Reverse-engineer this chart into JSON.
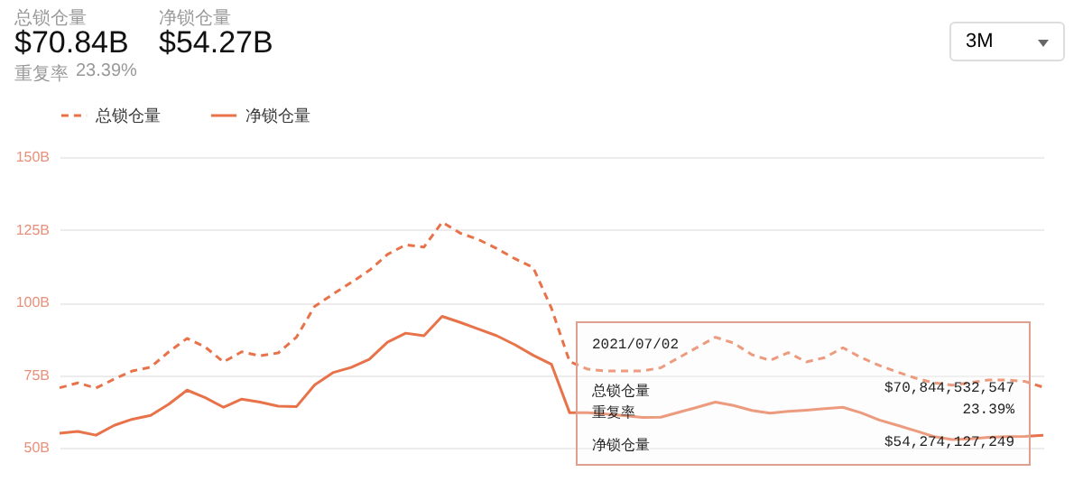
{
  "chart_data": {
    "type": "line",
    "categories": [
      null,
      null,
      null,
      null,
      null,
      null,
      null,
      null,
      null,
      null,
      null,
      null,
      null,
      null,
      null,
      null,
      null,
      null,
      null,
      null,
      null,
      null,
      null,
      null,
      null,
      null,
      null,
      null,
      null,
      null,
      null,
      null,
      null,
      null,
      null,
      null,
      null,
      null,
      null,
      null,
      null,
      null,
      null,
      null,
      null,
      null,
      null,
      null,
      null,
      null,
      null,
      null,
      null,
      null,
      null
    ],
    "series": [
      {
        "name": "总锁仓量",
        "color": "#e8734a",
        "line_style": "dashed",
        "values": [
          70.6,
          72.3,
          70.5,
          73.6,
          76.4,
          77.7,
          83,
          87.6,
          84.6,
          79.5,
          83,
          81.6,
          82.6,
          88,
          98.6,
          102.8,
          106.8,
          111,
          116.5,
          119.8,
          119,
          127.6,
          123.8,
          121.6,
          118.5,
          115,
          112,
          98,
          79.6,
          77,
          76.4,
          76.4,
          76.4,
          77.5,
          81,
          84.5,
          88,
          86,
          82,
          80,
          82.7,
          79.5,
          81,
          84.4,
          81,
          78.3,
          76,
          73.9,
          72.3,
          71.5,
          72.4,
          73.3,
          73.3,
          72.8,
          70.8
        ]
      },
      {
        "name": "净锁仓量",
        "color": "#e8734a",
        "line_style": "solid",
        "values": [
          55,
          55.6,
          54.3,
          57.7,
          59.8,
          61.1,
          65,
          69.8,
          67.2,
          63.9,
          66.7,
          65.7,
          64.3,
          64.1,
          71.6,
          75.8,
          77.6,
          80.4,
          86.3,
          89.4,
          88.5,
          95.2,
          93.1,
          90.8,
          88.5,
          85.4,
          81.8,
          78.7,
          62,
          62,
          61.6,
          61,
          60.4,
          60.5,
          62.2,
          63.9,
          65.7,
          64.5,
          62.8,
          61.9,
          62.5,
          62.9,
          63.4,
          63.9,
          62,
          59.5,
          57.7,
          55.8,
          53.8,
          52.8,
          53,
          53.6,
          53.8,
          53.9,
          54.3
        ]
      }
    ],
    "ylim": [
      50,
      150
    ],
    "yticks": [
      {
        "value": 50,
        "label": "50B"
      },
      {
        "value": 75,
        "label": "75B"
      },
      {
        "value": 100,
        "label": "100B"
      },
      {
        "value": 125,
        "label": "125B"
      },
      {
        "value": 150,
        "label": "150B"
      }
    ],
    "grid": "y",
    "legend": "top left",
    "tick_labels": "y",
    "annotations": [
      "总锁仓量",
      "$70.84B",
      "净锁仓量",
      "$54.27B",
      "重复率",
      "23.39%",
      "3M",
      "2021/07/02",
      "总锁仓量",
      "$70,844,532,547",
      "重复率",
      "23.39%",
      "净锁仓量",
      "$54,274,127,249"
    ]
  }
}
